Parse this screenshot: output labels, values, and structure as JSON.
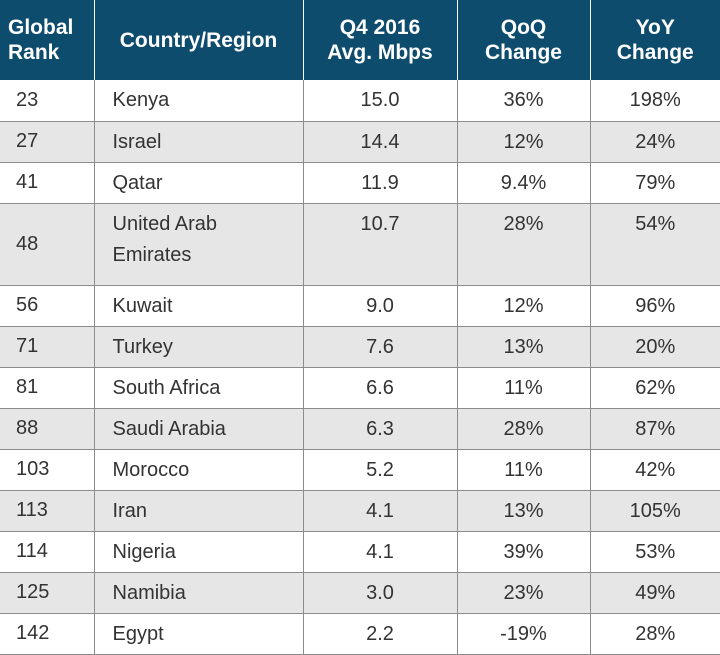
{
  "chart_data": {
    "type": "table",
    "columns": [
      "Global Rank",
      "Country/Region",
      "Q4 2016 Avg. Mbps",
      "QoQ Change",
      "YoY Change"
    ],
    "header_lines": [
      [
        "Global",
        "Rank"
      ],
      [
        "Country/Region"
      ],
      [
        "Q4 2016",
        "Avg. Mbps"
      ],
      [
        "QoQ",
        "Change"
      ],
      [
        "YoY",
        "Change"
      ]
    ],
    "rows": [
      {
        "rank": "23",
        "country": "Kenya",
        "mbps": "15.0",
        "qoq": "36%",
        "yoy": "198%"
      },
      {
        "rank": "27",
        "country": "Israel",
        "mbps": "14.4",
        "qoq": "12%",
        "yoy": "24%"
      },
      {
        "rank": "41",
        "country": "Qatar",
        "mbps": "11.9",
        "qoq": "9.4%",
        "yoy": "79%"
      },
      {
        "rank": "48",
        "country": "United Arab Emirates",
        "mbps": "10.7",
        "qoq": "28%",
        "yoy": "54%"
      },
      {
        "rank": "56",
        "country": "Kuwait",
        "mbps": "9.0",
        "qoq": "12%",
        "yoy": "96%"
      },
      {
        "rank": "71",
        "country": "Turkey",
        "mbps": "7.6",
        "qoq": "13%",
        "yoy": "20%"
      },
      {
        "rank": "81",
        "country": "South Africa",
        "mbps": "6.6",
        "qoq": "11%",
        "yoy": "62%"
      },
      {
        "rank": "88",
        "country": "Saudi Arabia",
        "mbps": "6.3",
        "qoq": "28%",
        "yoy": "87%"
      },
      {
        "rank": "103",
        "country": "Morocco",
        "mbps": "5.2",
        "qoq": "11%",
        "yoy": "42%"
      },
      {
        "rank": "113",
        "country": "Iran",
        "mbps": "4.1",
        "qoq": "13%",
        "yoy": "105%"
      },
      {
        "rank": "114",
        "country": "Nigeria",
        "mbps": "4.1",
        "qoq": "39%",
        "yoy": "53%"
      },
      {
        "rank": "125",
        "country": "Namibia",
        "mbps": "3.0",
        "qoq": "23%",
        "yoy": "49%"
      },
      {
        "rank": "142",
        "country": "Egypt",
        "mbps": "2.2",
        "qoq": "-19%",
        "yoy": "28%"
      }
    ],
    "header_color": "#0e4c6e",
    "stripe_color": "#e6e6e6"
  }
}
